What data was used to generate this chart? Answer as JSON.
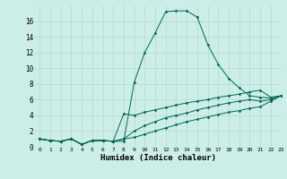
{
  "xlabel": "Humidex (Indice chaleur)",
  "bg_color": "#cceee8",
  "grid_color": "#bbddcc",
  "line_color": "#006655",
  "xlim": [
    -0.5,
    23
  ],
  "ylim": [
    0,
    18
  ],
  "yticks": [
    0,
    2,
    4,
    6,
    8,
    10,
    12,
    14,
    16
  ],
  "xticks": [
    0,
    1,
    2,
    3,
    4,
    5,
    6,
    7,
    8,
    9,
    10,
    11,
    12,
    13,
    14,
    15,
    16,
    17,
    18,
    19,
    20,
    21,
    22,
    23
  ],
  "series": [
    {
      "x": [
        0,
        1,
        2,
        3,
        4,
        5,
        6,
        7,
        8,
        9,
        10,
        11,
        12,
        13,
        14,
        15,
        16,
        17,
        18,
        19,
        20,
        21,
        22,
        23
      ],
      "y": [
        1.0,
        0.8,
        0.7,
        1.0,
        0.3,
        0.8,
        0.8,
        0.7,
        0.7,
        8.2,
        12.0,
        14.5,
        17.2,
        17.3,
        17.3,
        16.5,
        13.0,
        10.5,
        8.7,
        7.5,
        6.5,
        6.3,
        6.2,
        6.5
      ]
    },
    {
      "x": [
        0,
        1,
        2,
        3,
        4,
        5,
        6,
        7,
        8,
        9,
        10,
        11,
        12,
        13,
        14,
        15,
        16,
        17,
        18,
        19,
        20,
        21,
        22,
        23
      ],
      "y": [
        1.0,
        0.8,
        0.7,
        1.0,
        0.3,
        0.8,
        0.8,
        0.7,
        4.2,
        4.0,
        4.4,
        4.7,
        5.0,
        5.3,
        5.6,
        5.8,
        6.0,
        6.3,
        6.5,
        6.7,
        7.0,
        7.2,
        6.3,
        6.5
      ]
    },
    {
      "x": [
        0,
        1,
        2,
        3,
        4,
        5,
        6,
        7,
        8,
        9,
        10,
        11,
        12,
        13,
        14,
        15,
        16,
        17,
        18,
        19,
        20,
        21,
        22,
        23
      ],
      "y": [
        1.0,
        0.8,
        0.7,
        1.0,
        0.3,
        0.8,
        0.8,
        0.7,
        1.0,
        2.0,
        2.7,
        3.2,
        3.7,
        4.0,
        4.3,
        4.7,
        5.0,
        5.3,
        5.6,
        5.8,
        6.0,
        5.8,
        6.0,
        6.5
      ]
    },
    {
      "x": [
        0,
        1,
        2,
        3,
        4,
        5,
        6,
        7,
        8,
        9,
        10,
        11,
        12,
        13,
        14,
        15,
        16,
        17,
        18,
        19,
        20,
        21,
        22,
        23
      ],
      "y": [
        1.0,
        0.8,
        0.7,
        1.0,
        0.3,
        0.8,
        0.8,
        0.7,
        1.0,
        1.2,
        1.6,
        2.0,
        2.4,
        2.8,
        3.2,
        3.5,
        3.8,
        4.1,
        4.4,
        4.6,
        4.9,
        5.1,
        5.8,
        6.5
      ]
    }
  ]
}
